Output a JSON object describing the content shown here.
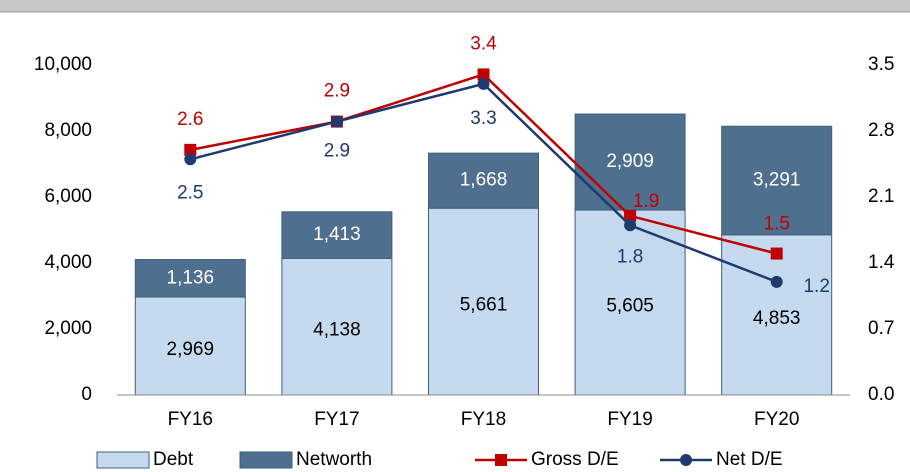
{
  "chart_data": {
    "type": "bar-line",
    "categories": [
      "FY16",
      "FY17",
      "FY18",
      "FY19",
      "FY20"
    ],
    "series": [
      {
        "name": "Debt",
        "type": "bar",
        "color": "#c5daee",
        "values": [
          2969,
          4138,
          5661,
          5605,
          4853
        ],
        "value_labels": [
          "2,969",
          "4,138",
          "5,661",
          "5,605",
          "4,853"
        ]
      },
      {
        "name": "Networth",
        "type": "bar",
        "color": "#4f6f8f",
        "values": [
          1136,
          1413,
          1668,
          2909,
          3291
        ],
        "value_labels": [
          "1,136",
          "1,413",
          "1,668",
          "2,909",
          "3,291"
        ]
      },
      {
        "name": "Gross D/E",
        "type": "line",
        "axis": "y2",
        "color": "#c00000",
        "values": [
          2.6,
          2.9,
          3.4,
          1.9,
          1.5
        ]
      },
      {
        "name": "Net D/E",
        "type": "line",
        "axis": "y2",
        "color": "#1f3a6e",
        "values": [
          2.5,
          2.9,
          3.3,
          1.8,
          1.2
        ]
      }
    ],
    "ylim": [
      0,
      10000
    ],
    "yticks": [
      0,
      {
        "value": 2000,
        "label": "2,000"
      },
      {
        "value": 4000,
        "label": "4,000"
      },
      {
        "value": 6000,
        "label": "6,000"
      },
      {
        "value": 8000,
        "label": "8,000"
      },
      {
        "value": 10000,
        "label": "10,000"
      }
    ],
    "y2lim": [
      0,
      3.5
    ],
    "y2ticks": [
      {
        "value": 0,
        "label": "0.0"
      },
      0.7,
      1.4,
      2.1,
      2.8,
      3.5
    ],
    "legend": "bottom"
  }
}
